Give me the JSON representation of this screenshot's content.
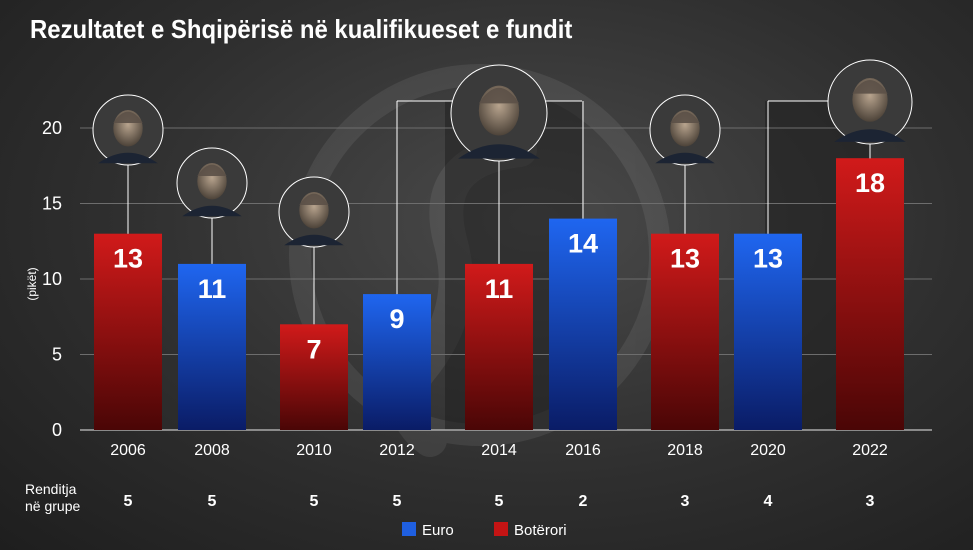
{
  "title": "Rezultatet e Shqipërisë në kualifikueset e fundit",
  "chart_data": {
    "type": "bar",
    "ylabel": "(pikët)",
    "ylim": [
      0,
      22
    ],
    "yticks": [
      0,
      5,
      10,
      15,
      20
    ],
    "grid": true,
    "categories": [
      "2006",
      "2008",
      "2010",
      "2012",
      "2014",
      "2016",
      "2018",
      "2020",
      "2022"
    ],
    "values": [
      13,
      11,
      7,
      9,
      11,
      14,
      13,
      13,
      18
    ],
    "value_labels": [
      "13",
      "11",
      "7",
      "9",
      "11",
      "14",
      "13",
      "13",
      "18"
    ],
    "competition": [
      "Botërori",
      "Euro",
      "Botërori",
      "Euro",
      "Botërori",
      "Euro",
      "Botërori",
      "Euro",
      "Botërori"
    ],
    "group_rank": [
      "5",
      "5",
      "5",
      "5",
      "5",
      "2",
      "3",
      "4",
      "3"
    ],
    "rank_title_lines": [
      "Renditja",
      "në grupe"
    ],
    "legend": [
      {
        "name": "Euro",
        "color": "#1f5fe0"
      },
      {
        "name": "Botërori",
        "color": "#c41414"
      }
    ],
    "legend_position": "bottom-center"
  },
  "colors": {
    "euro": "#1f5fe0",
    "world_cup": "#c41414"
  }
}
